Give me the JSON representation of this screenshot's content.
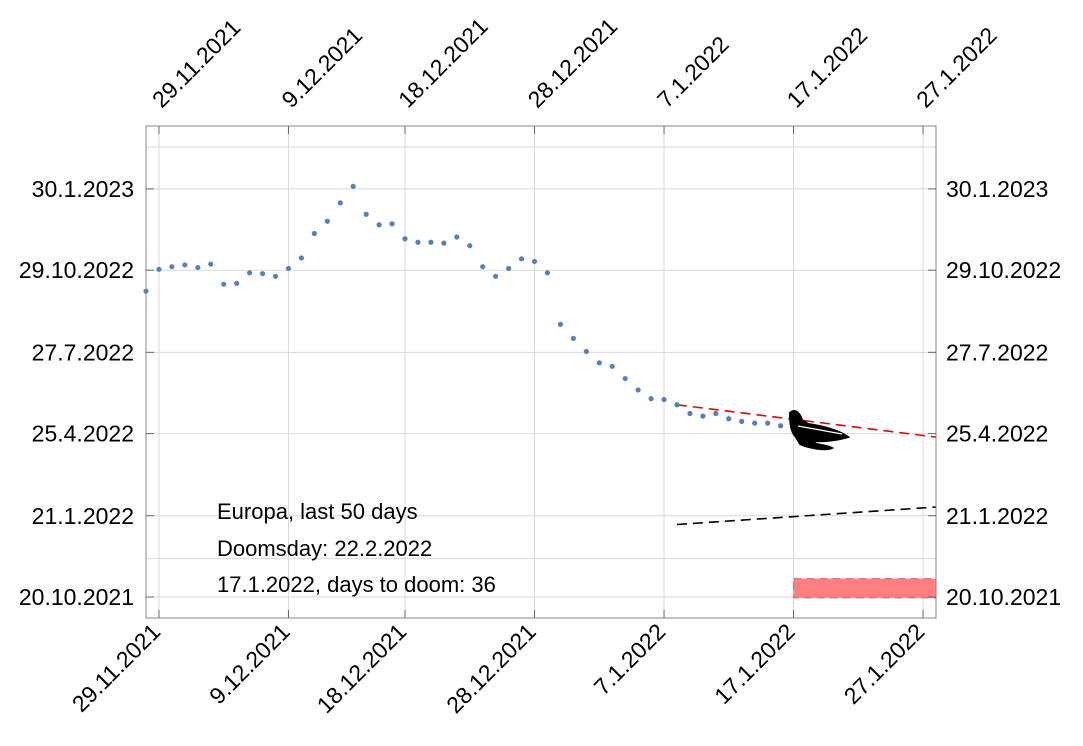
{
  "chart_data": {
    "type": "scatter",
    "x_tick_labels": [
      "29.11.2021",
      "9.12.2021",
      "18.12.2021",
      "28.12.2021",
      "7.1.2022",
      "17.1.2022",
      "27.1.2022"
    ],
    "x_tick_dates": [
      "2021-11-29",
      "2021-12-09",
      "2021-12-18",
      "2021-12-28",
      "2022-01-07",
      "2022-01-17",
      "2022-01-27"
    ],
    "y_tick_labels": [
      "20.10.2021",
      "21.1.2022",
      "25.4.2022",
      "27.7.2022",
      "29.10.2022",
      "30.1.2023"
    ],
    "y_tick_dates": [
      "2021-10-20",
      "2022-01-21",
      "2022-04-25",
      "2022-07-27",
      "2022-10-29",
      "2023-01-30"
    ],
    "xlim": [
      "2021-11-28",
      "2022-01-28"
    ],
    "ylim": [
      "2021-09-26",
      "2023-04-12"
    ],
    "grid": true,
    "series": [
      {
        "marker": "dot",
        "color": "#5b7fb7",
        "points": [
          [
            "2021-11-28",
            "2022-10-05"
          ],
          [
            "2021-11-29",
            "2022-10-30"
          ],
          [
            "2021-11-30",
            "2022-11-02"
          ],
          [
            "2021-12-01",
            "2022-11-04"
          ],
          [
            "2021-12-02",
            "2022-11-01"
          ],
          [
            "2021-12-03",
            "2022-11-05"
          ],
          [
            "2021-12-04",
            "2022-10-13"
          ],
          [
            "2021-12-05",
            "2022-10-14"
          ],
          [
            "2021-12-06",
            "2022-10-26"
          ],
          [
            "2021-12-07",
            "2022-10-25"
          ],
          [
            "2021-12-08",
            "2022-10-22"
          ],
          [
            "2021-12-09",
            "2022-10-31"
          ],
          [
            "2021-12-10",
            "2022-11-12"
          ],
          [
            "2021-12-11",
            "2022-12-10"
          ],
          [
            "2021-12-12",
            "2022-12-24"
          ],
          [
            "2021-12-13",
            "2023-01-14"
          ],
          [
            "2021-12-14",
            "2023-02-02"
          ],
          [
            "2021-12-15",
            "2023-01-01"
          ],
          [
            "2021-12-16",
            "2022-12-20"
          ],
          [
            "2021-12-17",
            "2022-12-21"
          ],
          [
            "2021-12-18",
            "2022-12-04"
          ],
          [
            "2021-12-19",
            "2022-11-30"
          ],
          [
            "2021-12-20",
            "2022-11-30"
          ],
          [
            "2021-12-21",
            "2022-11-29"
          ],
          [
            "2021-12-22",
            "2022-12-06"
          ],
          [
            "2021-12-23",
            "2022-11-26"
          ],
          [
            "2021-12-24",
            "2022-11-02"
          ],
          [
            "2021-12-25",
            "2022-10-22"
          ],
          [
            "2021-12-26",
            "2022-10-31"
          ],
          [
            "2021-12-27",
            "2022-11-11"
          ],
          [
            "2021-12-28",
            "2022-11-08"
          ],
          [
            "2021-12-29",
            "2022-10-26"
          ],
          [
            "2021-12-30",
            "2022-08-28"
          ],
          [
            "2021-12-31",
            "2022-08-12"
          ],
          [
            "2022-01-01",
            "2022-07-28"
          ],
          [
            "2022-01-02",
            "2022-07-15"
          ],
          [
            "2022-01-03",
            "2022-07-11"
          ],
          [
            "2022-01-04",
            "2022-06-27"
          ],
          [
            "2022-01-05",
            "2022-06-14"
          ],
          [
            "2022-01-06",
            "2022-06-04"
          ],
          [
            "2022-01-07",
            "2022-06-03"
          ],
          [
            "2022-01-08",
            "2022-05-28"
          ],
          [
            "2022-01-09",
            "2022-05-18"
          ],
          [
            "2022-01-10",
            "2022-05-15"
          ],
          [
            "2022-01-11",
            "2022-05-18"
          ],
          [
            "2022-01-12",
            "2022-05-12"
          ],
          [
            "2022-01-13",
            "2022-05-09"
          ],
          [
            "2022-01-14",
            "2022-05-07"
          ],
          [
            "2022-01-15",
            "2022-05-07"
          ],
          [
            "2022-01-16",
            "2022-05-04"
          ]
        ]
      }
    ],
    "trend_red": {
      "color": "#e8000b",
      "from": [
        "2022-01-08",
        "2022-05-28"
      ],
      "to": [
        "2022-01-28",
        "2022-04-21"
      ]
    },
    "trend_black": {
      "color": "#000000",
      "from": [
        "2022-01-08",
        "2022-01-11"
      ],
      "to": [
        "2022-01-28",
        "2022-01-31"
      ]
    },
    "band": {
      "color": "#ff8080",
      "x_from": "2022-01-17",
      "x_to": "2022-01-28",
      "y_from": "2021-10-19",
      "y_to": "2021-11-10"
    },
    "icon": "airplane-icon",
    "annotations": [
      "Europa, last 50 days",
      "Doomsday: 22.2.2022",
      "17.1.2022, days to doom: 36"
    ]
  }
}
